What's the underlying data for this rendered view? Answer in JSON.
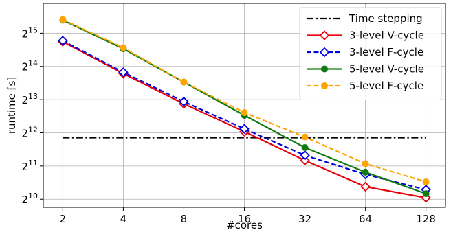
{
  "chart_data": {
    "type": "line",
    "xlabel": "#cores",
    "ylabel": "runtime [s]",
    "x_scale": "log2",
    "y_scale": "log2",
    "x_ticks": [
      2,
      4,
      8,
      16,
      32,
      64,
      128
    ],
    "x_tick_labels": [
      "2",
      "4",
      "8",
      "16",
      "32",
      "64",
      "128"
    ],
    "y_ticks": [
      1024,
      2048,
      4096,
      8192,
      16384,
      32768
    ],
    "y_tick_bases": [
      "2",
      "2",
      "2",
      "2",
      "2",
      "2"
    ],
    "y_tick_exponents": [
      "10",
      "11",
      "12",
      "13",
      "14",
      "15"
    ],
    "xlim": [
      1.6,
      160
    ],
    "ylim": [
      865,
      61000
    ],
    "grid": true,
    "legend_position": "top-right",
    "series": [
      {
        "name": "Time stepping",
        "color": "#000000",
        "dash": "dashdot",
        "marker": "none",
        "x": [
          2,
          128
        ],
        "y": [
          3700,
          3700
        ]
      },
      {
        "name": "3-level V-cycle",
        "color": "#e8000b",
        "dash": "solid",
        "marker": "diamond-open",
        "x": [
          2,
          4,
          8,
          16,
          32,
          64,
          128
        ],
        "y": [
          27500,
          14100,
          7500,
          4200,
          2300,
          1330,
          1055
        ]
      },
      {
        "name": "3-level F-cycle",
        "color": "#0000dd",
        "dash": "dashed",
        "marker": "diamond-open",
        "x": [
          2,
          4,
          8,
          16,
          32,
          64,
          128
        ],
        "y": [
          28000,
          14500,
          7850,
          4450,
          2560,
          1720,
          1250
        ]
      },
      {
        "name": "5-level V-cycle",
        "color": "#117a11",
        "dash": "solid",
        "marker": "circle-filled",
        "x": [
          2,
          4,
          8,
          16,
          32,
          64,
          128
        ],
        "y": [
          43000,
          23700,
          11800,
          5900,
          3010,
          1800,
          1150
        ]
      },
      {
        "name": "5-level F-cycle",
        "color": "#ffa500",
        "dash": "dashed",
        "marker": "circle-filled",
        "x": [
          2,
          4,
          8,
          16,
          32,
          64,
          128
        ],
        "y": [
          43500,
          24200,
          11800,
          6250,
          3750,
          2150,
          1470
        ]
      }
    ]
  }
}
